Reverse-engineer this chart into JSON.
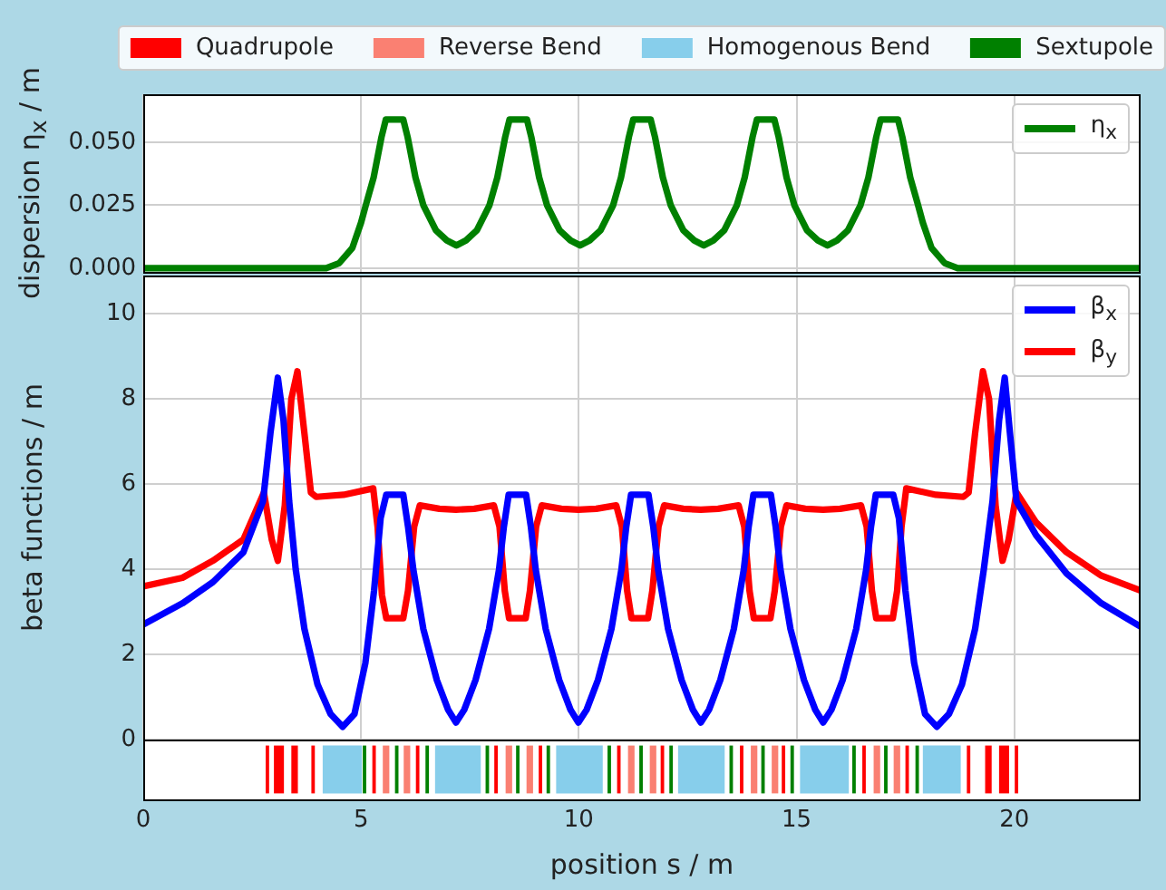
{
  "chart_data": [
    {
      "type": "line",
      "ylabel": "dispersion η$_{x}$ / m",
      "xlim": [
        0,
        22.9
      ],
      "ylim": [
        -0.0015,
        0.069
      ],
      "xticks": [
        0,
        5,
        10,
        15,
        20
      ],
      "yticks": [
        {
          "value": 0,
          "label": "0.000"
        },
        {
          "value": 0.025,
          "label": "0.025"
        },
        {
          "value": 0.05,
          "label": "0.050"
        }
      ],
      "grid": true,
      "legend": "top right",
      "tick_labels": "y",
      "series": [
        {
          "name": "η$_{x}$",
          "color": "#008000",
          "x": [
            0,
            4.2,
            4.5,
            4.8,
            5.0,
            5.11,
            5.29,
            5.47,
            5.57,
            5.97,
            6.07,
            6.25,
            6.43,
            6.72,
            6.97,
            7.19,
            7.41,
            7.66,
            7.95,
            8.13,
            8.31,
            8.41,
            8.81,
            8.91,
            9.09,
            9.27,
            9.56,
            9.81,
            10.03,
            10.25,
            10.5,
            10.79,
            10.97,
            11.15,
            11.25,
            11.65,
            11.75,
            11.93,
            12.11,
            12.4,
            12.65,
            12.87,
            13.09,
            13.34,
            13.63,
            13.81,
            13.99,
            14.09,
            14.49,
            14.59,
            14.77,
            14.95,
            15.24,
            15.49,
            15.71,
            15.93,
            16.18,
            16.47,
            16.65,
            16.83,
            16.93,
            17.33,
            17.43,
            17.61,
            17.79,
            17.9,
            18.1,
            18.4,
            18.7,
            22.9
          ],
          "values": [
            0,
            0,
            0.002,
            0.008,
            0.018,
            0.025,
            0.036,
            0.052,
            0.059,
            0.059,
            0.052,
            0.036,
            0.025,
            0.015,
            0.011,
            0.009,
            0.011,
            0.015,
            0.025,
            0.036,
            0.052,
            0.059,
            0.059,
            0.052,
            0.036,
            0.025,
            0.015,
            0.011,
            0.009,
            0.011,
            0.015,
            0.025,
            0.036,
            0.052,
            0.059,
            0.059,
            0.052,
            0.036,
            0.025,
            0.015,
            0.011,
            0.009,
            0.011,
            0.015,
            0.025,
            0.036,
            0.052,
            0.059,
            0.059,
            0.052,
            0.036,
            0.025,
            0.015,
            0.011,
            0.009,
            0.011,
            0.015,
            0.025,
            0.036,
            0.052,
            0.059,
            0.059,
            0.052,
            0.036,
            0.025,
            0.018,
            0.008,
            0.002,
            0,
            0
          ]
        }
      ]
    },
    {
      "type": "line",
      "ylabel": "beta functions / m",
      "xlim": [
        0,
        22.9
      ],
      "ylim": [
        0,
        10.9
      ],
      "xticks": [
        0,
        5,
        10,
        15,
        20
      ],
      "yticks": [
        0,
        2,
        4,
        6,
        8,
        10
      ],
      "grid": true,
      "legend": "top right",
      "tick_labels": "y",
      "series": [
        {
          "name": "β$_{x}$",
          "color": "#0000ff",
          "x": [
            0,
            0.9,
            1.6,
            2.3,
            2.75,
            2.92,
            3.09,
            3.22,
            3.35,
            3.5,
            3.7,
            4.0,
            4.3,
            4.58,
            4.85,
            5.1,
            5.3,
            5.45,
            5.58,
            5.97,
            6.08,
            6.2,
            6.43,
            6.74,
            7.0,
            7.18,
            7.37,
            7.63,
            7.94,
            8.17,
            8.28,
            8.39,
            8.79,
            8.9,
            9.01,
            9.24,
            9.55,
            9.81,
            9.99,
            10.18,
            10.44,
            10.75,
            10.98,
            11.09,
            11.2,
            11.6,
            11.71,
            11.82,
            12.05,
            12.36,
            12.62,
            12.8,
            12.99,
            13.25,
            13.56,
            13.79,
            13.9,
            14.01,
            14.41,
            14.52,
            14.63,
            14.86,
            15.17,
            15.43,
            15.61,
            15.8,
            16.06,
            16.37,
            16.6,
            16.71,
            16.82,
            17.22,
            17.35,
            17.5,
            17.7,
            17.95,
            18.22,
            18.5,
            18.8,
            19.1,
            19.3,
            19.5,
            19.65,
            19.78,
            19.9,
            20.05,
            20.5,
            21.2,
            22.0,
            22.9
          ],
          "values": [
            2.7,
            3.2,
            3.7,
            4.4,
            5.6,
            7.2,
            8.5,
            7.5,
            5.6,
            4.0,
            2.6,
            1.3,
            0.6,
            0.3,
            0.6,
            1.8,
            3.5,
            5.2,
            5.75,
            5.75,
            5.0,
            4.0,
            2.6,
            1.4,
            0.7,
            0.4,
            0.7,
            1.4,
            2.6,
            4.0,
            5.0,
            5.75,
            5.75,
            5.0,
            4.0,
            2.6,
            1.4,
            0.7,
            0.4,
            0.7,
            1.4,
            2.6,
            4.0,
            5.0,
            5.75,
            5.75,
            5.0,
            4.0,
            2.6,
            1.4,
            0.7,
            0.4,
            0.7,
            1.4,
            2.6,
            4.0,
            5.0,
            5.75,
            5.75,
            5.0,
            4.0,
            2.6,
            1.4,
            0.7,
            0.4,
            0.7,
            1.4,
            2.6,
            4.0,
            5.0,
            5.75,
            5.75,
            5.2,
            3.5,
            1.8,
            0.6,
            0.3,
            0.6,
            1.3,
            2.6,
            4.0,
            5.6,
            7.5,
            8.5,
            7.2,
            5.6,
            4.8,
            3.9,
            3.2,
            2.65
          ]
        },
        {
          "name": "β$_{y}$",
          "color": "#ff0000",
          "x": [
            0,
            0.9,
            1.6,
            2.3,
            2.77,
            2.95,
            3.09,
            3.25,
            3.4,
            3.54,
            3.7,
            3.85,
            3.97,
            4.6,
            5.28,
            5.38,
            5.48,
            5.58,
            5.97,
            6.08,
            6.22,
            6.35,
            6.8,
            7.18,
            7.6,
            8.05,
            8.18,
            8.3,
            8.4,
            8.78,
            8.88,
            9.02,
            9.15,
            9.6,
            9.99,
            10.4,
            10.86,
            10.99,
            11.11,
            11.21,
            11.59,
            11.69,
            11.83,
            11.96,
            12.4,
            12.8,
            13.2,
            13.67,
            13.8,
            13.92,
            14.02,
            14.4,
            14.5,
            14.64,
            14.77,
            15.2,
            15.61,
            16.0,
            16.48,
            16.61,
            16.73,
            16.83,
            17.21,
            17.31,
            17.41,
            17.52,
            18.2,
            18.83,
            18.95,
            19.1,
            19.28,
            19.42,
            19.57,
            19.73,
            19.87,
            20.05,
            20.5,
            21.2,
            22.0,
            22.9
          ],
          "values": [
            3.6,
            3.8,
            4.2,
            4.7,
            5.8,
            4.7,
            4.2,
            5.5,
            8.0,
            8.65,
            7.2,
            5.8,
            5.7,
            5.75,
            5.9,
            5.0,
            3.4,
            2.85,
            2.85,
            3.5,
            5.0,
            5.5,
            5.42,
            5.4,
            5.42,
            5.5,
            5.0,
            3.5,
            2.85,
            2.85,
            3.5,
            5.0,
            5.5,
            5.42,
            5.4,
            5.42,
            5.5,
            5.0,
            3.5,
            2.85,
            2.85,
            3.5,
            5.0,
            5.5,
            5.42,
            5.4,
            5.42,
            5.5,
            5.0,
            3.5,
            2.85,
            2.85,
            3.5,
            5.0,
            5.5,
            5.42,
            5.4,
            5.42,
            5.5,
            5.0,
            3.5,
            2.85,
            2.85,
            3.5,
            5.0,
            5.9,
            5.75,
            5.7,
            5.8,
            7.2,
            8.65,
            8.0,
            5.5,
            4.2,
            4.7,
            5.8,
            5.1,
            4.4,
            3.85,
            3.5
          ]
        }
      ]
    },
    {
      "type": "bar",
      "orientation": "horizontal",
      "xlabel": "position s / m",
      "xlim": [
        0,
        22.9
      ],
      "xticks": [
        0,
        5,
        10,
        15,
        20
      ],
      "categories": [
        null
      ],
      "legend": "top",
      "tick_labels": "x",
      "series": [
        {
          "name": "Quadrupole",
          "color": "#ff0000",
          "base": [
            2.81
          ],
          "values": [
            0.08
          ]
        },
        {
          "name": "Reverse Bend",
          "color": "#fa8072",
          "base": [
            5.5
          ],
          "values": [
            0.15
          ]
        },
        {
          "name": "Homogenous Bend",
          "color": "#87ceeb",
          "base": [
            4.12
          ],
          "values": [
            0.9
          ]
        },
        {
          "name": "Sextupole",
          "color": "#008000",
          "base": [
            5.04
          ],
          "values": [
            0.08
          ]
        },
        {
          "color": "#ff0000",
          "base": [
            3.0
          ],
          "values": [
            0.23
          ]
        },
        {
          "color": "#ff0000",
          "base": [
            3.4
          ],
          "values": [
            0.15
          ]
        },
        {
          "color": "#ff0000",
          "base": [
            3.86
          ],
          "values": [
            0.08
          ]
        },
        {
          "color": "#ff0000",
          "base": [
            5.26
          ],
          "values": [
            0.08
          ]
        },
        {
          "color": "#008000",
          "base": [
            5.78
          ],
          "values": [
            0.08
          ]
        },
        {
          "color": "#fa8072",
          "base": [
            5.98
          ],
          "values": [
            0.15
          ]
        },
        {
          "color": "#ff0000",
          "base": [
            6.26
          ],
          "values": [
            0.08
          ]
        },
        {
          "color": "#008000",
          "base": [
            6.48
          ],
          "values": [
            0.08
          ]
        },
        {
          "color": "#87ceeb",
          "base": [
            6.7
          ],
          "values": [
            1.05
          ]
        },
        {
          "color": "#008000",
          "base": [
            7.86
          ],
          "values": [
            0.08
          ]
        },
        {
          "color": "#ff0000",
          "base": [
            8.06
          ],
          "values": [
            0.08
          ]
        },
        {
          "color": "#fa8072",
          "base": [
            8.32
          ],
          "values": [
            0.15
          ]
        },
        {
          "color": "#008000",
          "base": [
            8.56
          ],
          "values": [
            0.08
          ]
        },
        {
          "color": "#fa8072",
          "base": [
            8.8
          ],
          "values": [
            0.15
          ]
        },
        {
          "color": "#ff0000",
          "base": [
            9.08
          ],
          "values": [
            0.08
          ]
        },
        {
          "color": "#008000",
          "base": [
            9.26
          ],
          "values": [
            0.08
          ]
        },
        {
          "color": "#87ceeb",
          "base": [
            9.48
          ],
          "values": [
            1.07
          ]
        },
        {
          "color": "#008000",
          "base": [
            10.66
          ],
          "values": [
            0.08
          ]
        },
        {
          "color": "#ff0000",
          "base": [
            10.88
          ],
          "values": [
            0.08
          ]
        },
        {
          "color": "#fa8072",
          "base": [
            11.13
          ],
          "values": [
            0.15
          ]
        },
        {
          "color": "#008000",
          "base": [
            11.39
          ],
          "values": [
            0.08
          ]
        },
        {
          "color": "#fa8072",
          "base": [
            11.63
          ],
          "values": [
            0.15
          ]
        },
        {
          "color": "#ff0000",
          "base": [
            11.88
          ],
          "values": [
            0.08
          ]
        },
        {
          "color": "#008000",
          "base": [
            12.08
          ],
          "values": [
            0.08
          ]
        },
        {
          "color": "#87ceeb",
          "base": [
            12.28
          ],
          "values": [
            1.07
          ]
        },
        {
          "color": "#008000",
          "base": [
            13.46
          ],
          "values": [
            0.08
          ]
        },
        {
          "color": "#ff0000",
          "base": [
            13.7
          ],
          "values": [
            0.08
          ]
        },
        {
          "color": "#fa8072",
          "base": [
            13.95
          ],
          "values": [
            0.15
          ]
        },
        {
          "color": "#008000",
          "base": [
            14.19
          ],
          "values": [
            0.08
          ]
        },
        {
          "color": "#fa8072",
          "base": [
            14.43
          ],
          "values": [
            0.15
          ]
        },
        {
          "color": "#ff0000",
          "base": [
            14.66
          ],
          "values": [
            0.08
          ]
        },
        {
          "color": "#008000",
          "base": [
            14.86
          ],
          "values": [
            0.08
          ]
        },
        {
          "color": "#87ceeb",
          "base": [
            15.08
          ],
          "values": [
            1.12
          ]
        },
        {
          "color": "#008000",
          "base": [
            16.28
          ],
          "values": [
            0.08
          ]
        },
        {
          "color": "#ff0000",
          "base": [
            16.51
          ],
          "values": [
            0.08
          ]
        },
        {
          "color": "#fa8072",
          "base": [
            16.77
          ],
          "values": [
            0.15
          ]
        },
        {
          "color": "#008000",
          "base": [
            17.01
          ],
          "values": [
            0.08
          ]
        },
        {
          "color": "#fa8072",
          "base": [
            17.23
          ],
          "values": [
            0.15
          ]
        },
        {
          "color": "#ff0000",
          "base": [
            17.5
          ],
          "values": [
            0.08
          ]
        },
        {
          "color": "#008000",
          "base": [
            17.73
          ],
          "values": [
            0.08
          ]
        },
        {
          "color": "#87ceeb",
          "base": [
            17.9
          ],
          "values": [
            0.87
          ]
        },
        {
          "color": "#ff0000",
          "base": [
            18.91
          ],
          "values": [
            0.08
          ]
        },
        {
          "color": "#ff0000",
          "base": [
            19.33
          ],
          "values": [
            0.15
          ]
        },
        {
          "color": "#ff0000",
          "base": [
            19.65
          ],
          "values": [
            0.23
          ]
        },
        {
          "color": "#ff0000",
          "base": [
            20.01
          ],
          "values": [
            0.08
          ]
        }
      ]
    }
  ]
}
